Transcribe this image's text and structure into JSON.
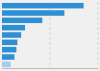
{
  "chart_data": {
    "type": "bar",
    "orientation": "horizontal",
    "categories": [
      null,
      null,
      null,
      null,
      null,
      null,
      null,
      null,
      null
    ],
    "values": [
      85,
      65,
      42,
      24,
      20,
      16,
      15,
      13,
      9
    ],
    "colors": [
      "#2f8fd4",
      "#2f8fd4",
      "#2f8fd4",
      "#2f8fd4",
      "#2f8fd4",
      "#2f8fd4",
      "#2f8fd4",
      "#2f8fd4",
      "#a8cce8"
    ],
    "xlim": [
      0,
      100
    ],
    "xticks": [
      50,
      100
    ],
    "grid": true,
    "tick_labels": false
  }
}
